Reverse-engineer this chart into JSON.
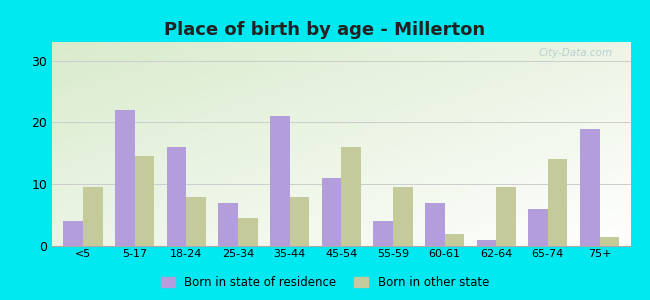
{
  "title": "Place of birth by age - Millerton",
  "categories": [
    "<5",
    "5-17",
    "18-24",
    "25-34",
    "35-44",
    "45-54",
    "55-59",
    "60-61",
    "62-64",
    "65-74",
    "75+"
  ],
  "born_in_state": [
    4,
    22,
    16,
    7,
    21,
    11,
    4,
    7,
    1,
    6,
    19
  ],
  "born_other_state": [
    9.5,
    14.5,
    8,
    4.5,
    8,
    16,
    9.5,
    2,
    9.5,
    14,
    1.5
  ],
  "bar_color_state": "#b39ddb",
  "bar_color_other": "#c5ca9a",
  "outer_bg": "#00e8f0",
  "ylim": [
    0,
    33
  ],
  "yticks": [
    0,
    10,
    20,
    30
  ],
  "legend_state": "Born in state of residence",
  "legend_other": "Born in other state",
  "bar_width": 0.38,
  "grid_color": "#cccccc",
  "title_color": "#222222",
  "watermark": "City-Data.com"
}
